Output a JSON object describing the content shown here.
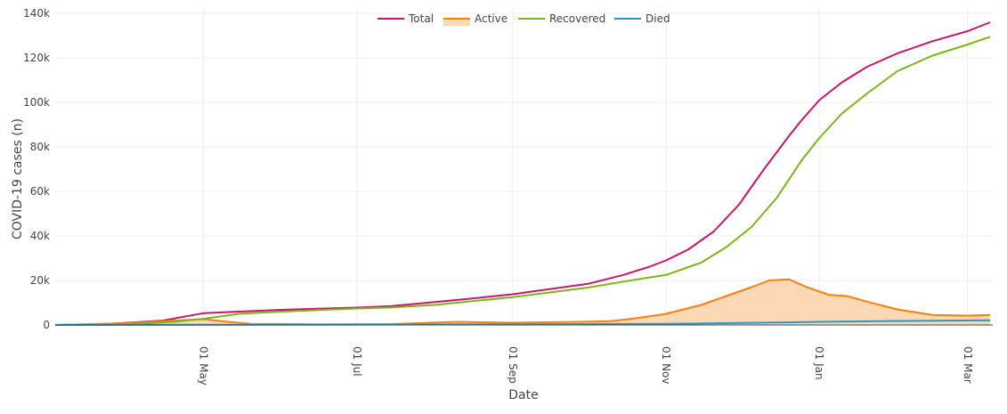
{
  "chart_data": {
    "type": "line",
    "xlabel": "Date",
    "ylabel": "COVID-19 cases (n)",
    "x_ticks": [
      {
        "date": "2020-05-01",
        "label": "01 May"
      },
      {
        "date": "2020-07-01",
        "label": "01 Jul"
      },
      {
        "date": "2020-09-01",
        "label": "01 Sep"
      },
      {
        "date": "2020-11-01",
        "label": "01 Nov"
      },
      {
        "date": "2021-01-01",
        "label": "01 Jan"
      },
      {
        "date": "2021-03-01",
        "label": "01 Mar"
      }
    ],
    "y_ticks": [
      {
        "value": 0,
        "label": "0"
      },
      {
        "value": 20000,
        "label": "20k"
      },
      {
        "value": 40000,
        "label": "40k"
      },
      {
        "value": 60000,
        "label": "60k"
      },
      {
        "value": 80000,
        "label": "80k"
      },
      {
        "value": 100000,
        "label": "100k"
      },
      {
        "value": 120000,
        "label": "120k"
      },
      {
        "value": 140000,
        "label": "140k"
      }
    ],
    "xlim": [
      "2020-03-03",
      "2021-03-11"
    ],
    "ylim": [
      0,
      142000
    ],
    "grid": true,
    "legend_position": "top-center",
    "series": [
      {
        "name": "Total",
        "color": "#c7166b",
        "fill": false,
        "points": [
          [
            "2020-03-03",
            0
          ],
          [
            "2020-03-20",
            300
          ],
          [
            "2020-04-01",
            1000
          ],
          [
            "2020-04-15",
            2000
          ],
          [
            "2020-04-22",
            3500
          ],
          [
            "2020-05-01",
            5300
          ],
          [
            "2020-05-15",
            6000
          ],
          [
            "2020-06-01",
            6800
          ],
          [
            "2020-06-15",
            7300
          ],
          [
            "2020-07-01",
            7800
          ],
          [
            "2020-07-15",
            8500
          ],
          [
            "2020-08-01",
            10300
          ],
          [
            "2020-08-15",
            11800
          ],
          [
            "2020-09-01",
            13800
          ],
          [
            "2020-09-15",
            16000
          ],
          [
            "2020-10-01",
            18500
          ],
          [
            "2020-10-15",
            22500
          ],
          [
            "2020-10-25",
            26000
          ],
          [
            "2020-11-01",
            29000
          ],
          [
            "2020-11-10",
            34000
          ],
          [
            "2020-11-20",
            42000
          ],
          [
            "2020-11-30",
            54000
          ],
          [
            "2020-12-10",
            70000
          ],
          [
            "2020-12-20",
            85000
          ],
          [
            "2020-12-25",
            92000
          ],
          [
            "2021-01-01",
            101000
          ],
          [
            "2021-01-10",
            109000
          ],
          [
            "2021-01-20",
            116000
          ],
          [
            "2021-02-01",
            122000
          ],
          [
            "2021-02-15",
            127500
          ],
          [
            "2021-03-01",
            132000
          ],
          [
            "2021-03-10",
            136000
          ]
        ]
      },
      {
        "name": "Active",
        "color": "#ff7f0e",
        "fill": true,
        "fill_color": "#fdd8b5",
        "points": [
          [
            "2020-03-03",
            0
          ],
          [
            "2020-04-01",
            800
          ],
          [
            "2020-04-20",
            2000
          ],
          [
            "2020-05-01",
            2600
          ],
          [
            "2020-05-10",
            1500
          ],
          [
            "2020-05-20",
            500
          ],
          [
            "2020-06-15",
            300
          ],
          [
            "2020-07-15",
            400
          ],
          [
            "2020-08-10",
            1400
          ],
          [
            "2020-09-01",
            1000
          ],
          [
            "2020-09-20",
            1300
          ],
          [
            "2020-10-10",
            1700
          ],
          [
            "2020-10-20",
            3000
          ],
          [
            "2020-11-01",
            5000
          ],
          [
            "2020-11-15",
            9000
          ],
          [
            "2020-11-25",
            13000
          ],
          [
            "2020-12-05",
            17000
          ],
          [
            "2020-12-12",
            20000
          ],
          [
            "2020-12-20",
            20500
          ],
          [
            "2020-12-27",
            17000
          ],
          [
            "2021-01-05",
            13500
          ],
          [
            "2021-01-12",
            13000
          ],
          [
            "2021-01-20",
            10500
          ],
          [
            "2021-02-01",
            7000
          ],
          [
            "2021-02-15",
            4500
          ],
          [
            "2021-03-01",
            4200
          ],
          [
            "2021-03-10",
            4500
          ]
        ]
      },
      {
        "name": "Recovered",
        "color": "#7cb518",
        "fill": false,
        "points": [
          [
            "2020-03-03",
            0
          ],
          [
            "2020-04-01",
            300
          ],
          [
            "2020-04-20",
            1500
          ],
          [
            "2020-05-01",
            2800
          ],
          [
            "2020-05-15",
            5000
          ],
          [
            "2020-06-01",
            6000
          ],
          [
            "2020-07-01",
            7400
          ],
          [
            "2020-07-15",
            7900
          ],
          [
            "2020-08-01",
            9000
          ],
          [
            "2020-09-01",
            12500
          ],
          [
            "2020-09-15",
            14500
          ],
          [
            "2020-10-01",
            16800
          ],
          [
            "2020-10-15",
            19500
          ],
          [
            "2020-11-01",
            22500
          ],
          [
            "2020-11-15",
            28000
          ],
          [
            "2020-11-25",
            35000
          ],
          [
            "2020-12-05",
            44000
          ],
          [
            "2020-12-15",
            57000
          ],
          [
            "2020-12-25",
            74000
          ],
          [
            "2021-01-01",
            84000
          ],
          [
            "2021-01-10",
            95000
          ],
          [
            "2021-01-20",
            104000
          ],
          [
            "2021-02-01",
            114000
          ],
          [
            "2021-02-15",
            121000
          ],
          [
            "2021-03-01",
            126000
          ],
          [
            "2021-03-10",
            129500
          ]
        ]
      },
      {
        "name": "Died",
        "color": "#1f9bcf",
        "fill": false,
        "points": [
          [
            "2020-03-03",
            0
          ],
          [
            "2020-05-01",
            100
          ],
          [
            "2020-09-01",
            300
          ],
          [
            "2020-11-01",
            500
          ],
          [
            "2020-12-01",
            900
          ],
          [
            "2021-01-01",
            1400
          ],
          [
            "2021-02-01",
            1800
          ],
          [
            "2021-03-10",
            2100
          ]
        ]
      }
    ]
  }
}
